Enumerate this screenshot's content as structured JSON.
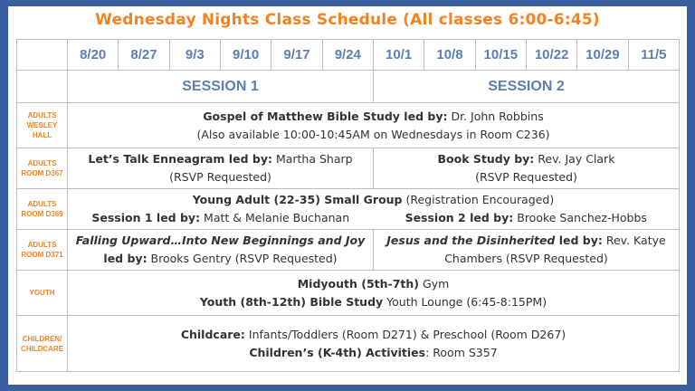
{
  "title": "Wednesday Nights Class Schedule (All classes 6:00-6:45)",
  "dates": [
    "8/20",
    "8/27",
    "9/3",
    "9/10",
    "9/17",
    "9/24",
    "10/1",
    "10/8",
    "10/15",
    "10/22",
    "10/29",
    "11/5"
  ],
  "sessions": [
    "SESSION 1",
    "SESSION 2"
  ],
  "rows": [
    {
      "label1": "ADULTS",
      "label2": "WESLEY HALL",
      "title": "Gospel of Matthew Bible Study led by:",
      "leader": " Dr. John Robbins",
      "note": "(Also available 10:00-10:45AM on Wednesdays in Room C236)"
    },
    {
      "label1": "ADULTS",
      "label2": "ROOM D367",
      "s1_title": "Let’s Talk Enneagram led by:",
      "s1_leader": " Martha Sharp",
      "s1_note": "(RSVP Requested)",
      "s2_title": "Book Study by:",
      "s2_leader": " Rev. Jay Clark",
      "s2_note": "(RSVP Requested)"
    },
    {
      "label1": "ADULTS",
      "label2": "ROOM D369",
      "title": "Young Adult (22-35) Small Group",
      "title_note": " (Registration Encouraged)",
      "s1_title": "Session 1 led by:",
      "s1_leader": " Matt & Melanie Buchanan",
      "s2_title": "Session 2 led by:",
      "s2_leader": " Brooke Sanchez-Hobbs"
    },
    {
      "label1": "ADULTS",
      "label2": "ROOM D371",
      "s1_italic": "Falling Upward…Into New Beginnings and Joy",
      "s1_title": "led by:",
      "s1_leader": " Brooks Gentry (RSVP Requested)",
      "s2_italic": "Jesus and the Disinherited",
      "s2_title": " led by:",
      "s2_leader": " Rev. Katye",
      "s2_leader2": "Chambers (RSVP Requested)"
    },
    {
      "label1": "YOUTH",
      "l1_title": "Midyouth (5th-7th)",
      "l1_rest": " Gym",
      "l2_title": "Youth (8th-12th) Bible Study",
      "l2_rest": " Youth Lounge (6:45-8:15PM)"
    },
    {
      "label1": "CHILDREN/",
      "label2": "CHILDCARE",
      "l1_title": "Childcare:",
      "l1_rest": " Infants/Toddlers (Room D271) & Preschool (Room D267)",
      "l2_title": "Children’s (K-4th) Activities",
      "l2_rest": ": Room S357"
    }
  ]
}
